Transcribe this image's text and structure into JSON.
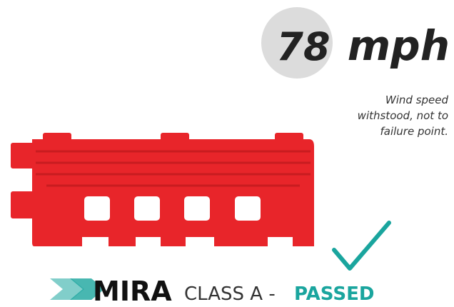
{
  "badge": {
    "number": "78",
    "unit": "mph"
  },
  "note": {
    "lines": [
      "Wind speed",
      "withstood, not to",
      "failure point."
    ]
  },
  "footer": {
    "logo": "MIRA",
    "class_text": "CLASS A -",
    "result": "PASSED"
  }
}
